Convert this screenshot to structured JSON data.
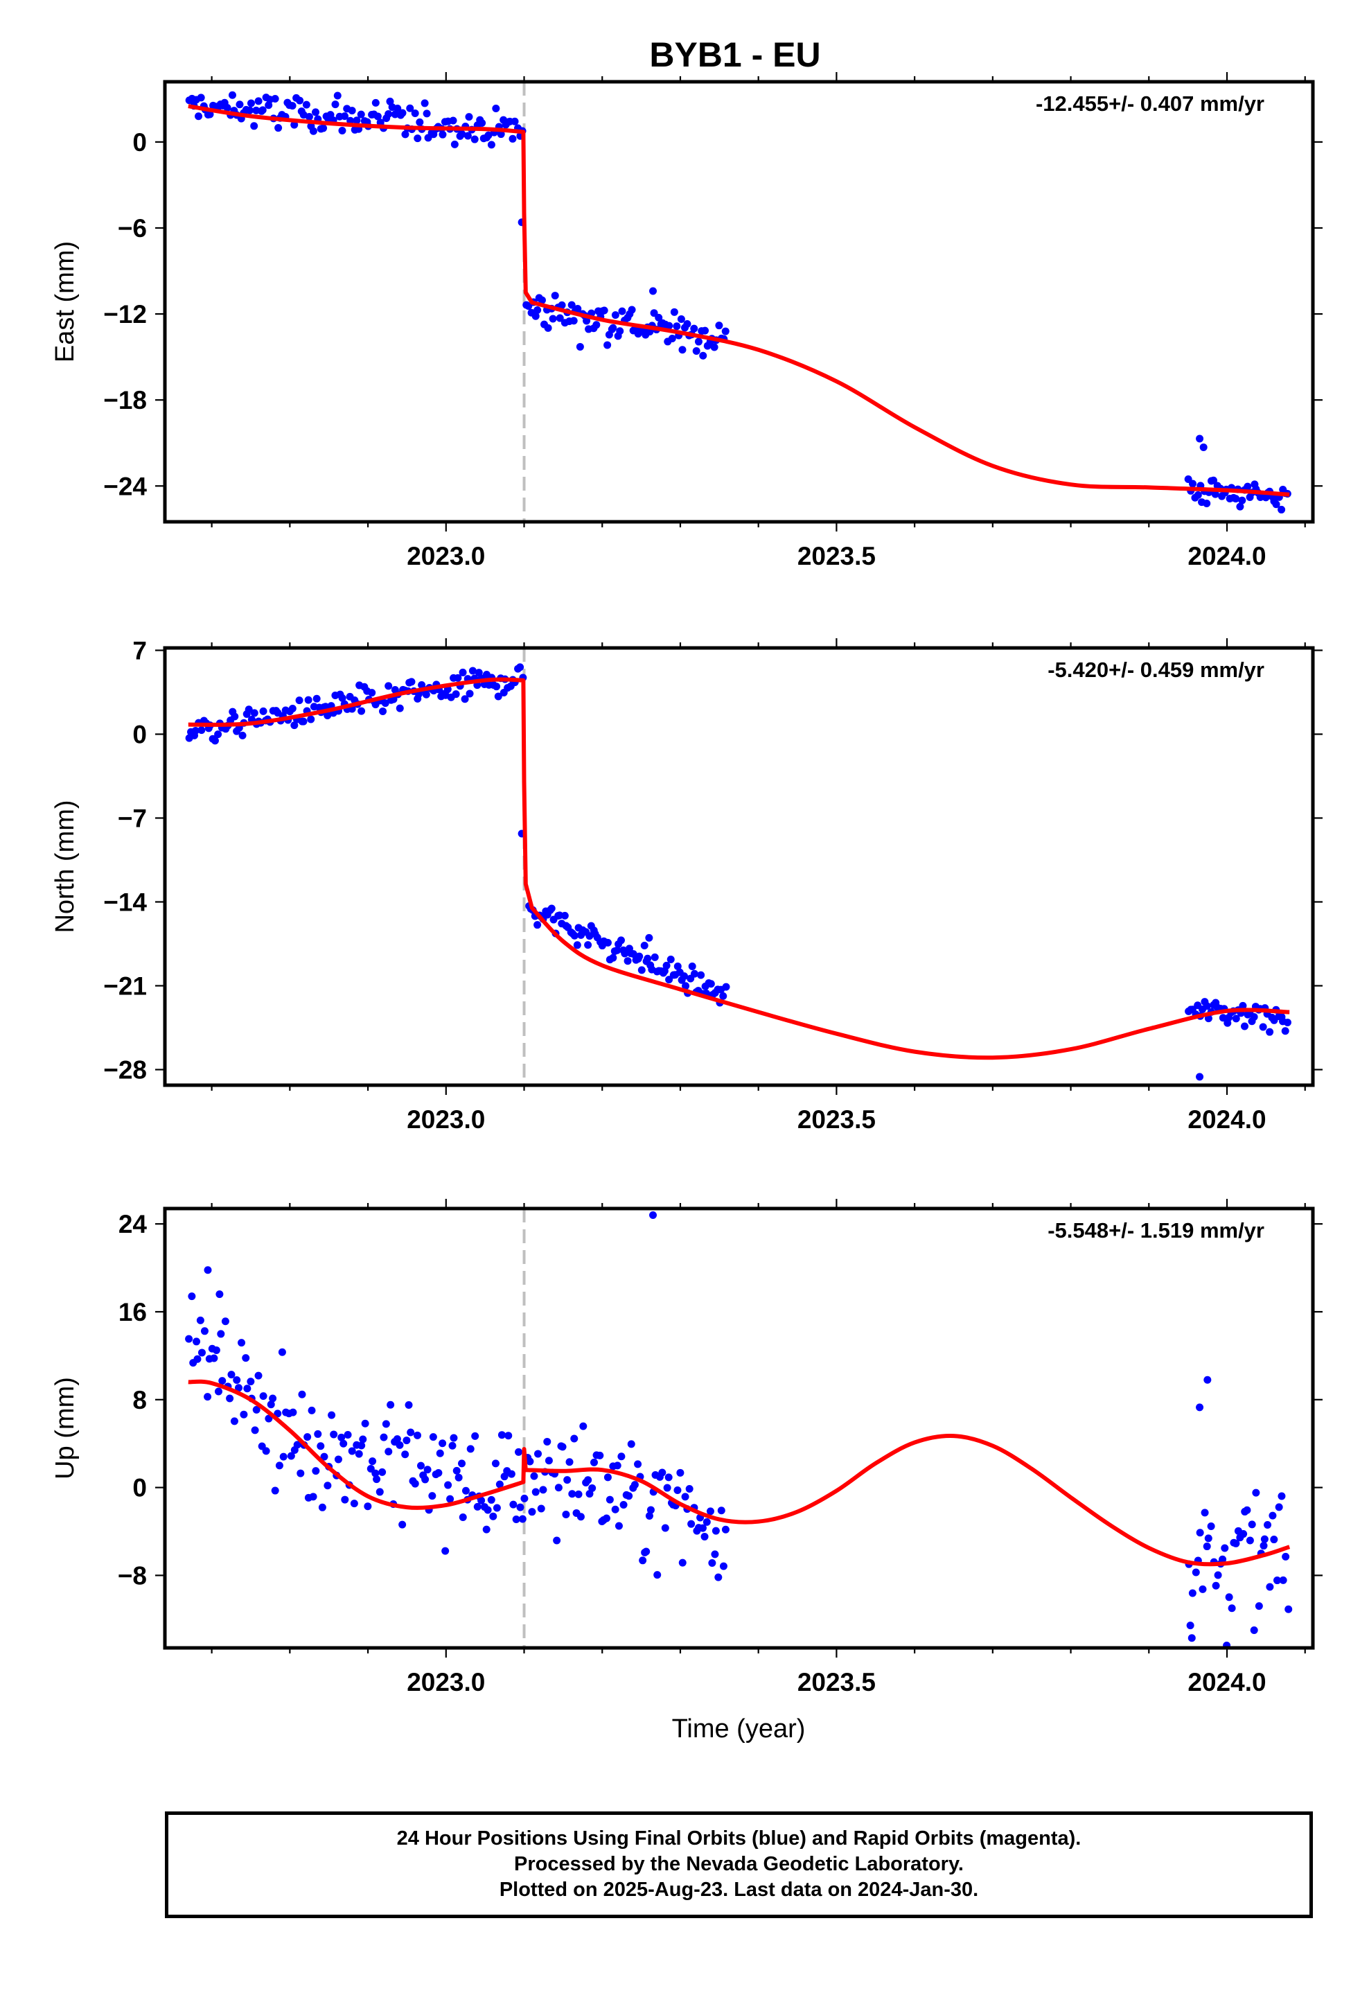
{
  "title": "BYB1 - EU",
  "xlabel": "Time (year)",
  "footer": {
    "line1": "24 Hour Positions Using Final Orbits (blue) and Rapid Orbits (magenta).",
    "line2": "Processed by the Nevada Geodetic Laboratory.",
    "line3": "Plotted on 2025-Aug-23. Last data on 2024-Jan-30."
  },
  "colors": {
    "points": "#0000ff",
    "fit": "#ff0000",
    "equipment_change": "#bfbfbf"
  },
  "chart_data": [
    {
      "type": "scatter",
      "component": "East",
      "ylabel": "East (mm)",
      "rate": "-12.455+/- 0.407 mm/yr",
      "xlim": [
        2022.64,
        2024.11
      ],
      "ylim": [
        -26.5,
        4.2
      ],
      "yticks": [
        0,
        -6,
        -12,
        -18,
        -24
      ],
      "ytick_labels": [
        "0",
        "−6",
        "−12",
        "−18",
        "−24"
      ],
      "xticks": [
        2023.0,
        2023.5,
        2024.0
      ],
      "xtick_labels": [
        "2023.0",
        "2023.5",
        "2024.0"
      ],
      "grid": false,
      "step_epoch": 2023.1,
      "segments": [
        {
          "x0": 2022.67,
          "x1": 2023.1,
          "y0": 2.5,
          "y1": 0.8,
          "sd": 0.9,
          "n": 140
        },
        {
          "x0": 2023.102,
          "x1": 2023.36,
          "y0": -11.5,
          "y1": -13.8,
          "sd": 1.0,
          "n": 90
        },
        {
          "x0": 2023.95,
          "x1": 2024.08,
          "y0": -24.2,
          "y1": -24.9,
          "sd": 0.7,
          "n": 45
        }
      ],
      "outliers": [
        {
          "x": 2023.097,
          "y": -5.6
        },
        {
          "x": 2023.965,
          "y": -20.7
        },
        {
          "x": 2023.97,
          "y": -21.3
        },
        {
          "x": 2023.265,
          "y": -10.4
        }
      ],
      "fit": [
        [
          2022.67,
          2.5
        ],
        [
          2022.75,
          1.8
        ],
        [
          2022.85,
          1.3
        ],
        [
          2022.95,
          1.0
        ],
        [
          2023.05,
          0.9
        ],
        [
          2023.099,
          0.7
        ],
        [
          2023.1,
          -5.0
        ],
        [
          2023.102,
          -10.5
        ],
        [
          2023.11,
          -11.2
        ],
        [
          2023.2,
          -12.4
        ],
        [
          2023.3,
          -13.3
        ],
        [
          2023.4,
          -14.5
        ],
        [
          2023.5,
          -16.7
        ],
        [
          2023.6,
          -19.9
        ],
        [
          2023.7,
          -22.6
        ],
        [
          2023.8,
          -23.9
        ],
        [
          2023.9,
          -24.1
        ],
        [
          2024.0,
          -24.3
        ],
        [
          2024.08,
          -24.6
        ]
      ]
    },
    {
      "type": "scatter",
      "component": "North",
      "ylabel": "North (mm)",
      "rate": "-5.420+/- 0.459 mm/yr",
      "xlim": [
        2022.64,
        2024.11
      ],
      "ylim": [
        -29.3,
        7.2
      ],
      "yticks": [
        7,
        0,
        -7,
        -14,
        -21,
        -28
      ],
      "ytick_labels": [
        "7",
        "0",
        "−7",
        "−14",
        "−21",
        "−28"
      ],
      "xticks": [
        2023.0,
        2023.5,
        2024.0
      ],
      "xtick_labels": [
        "2023.0",
        "2023.5",
        "2024.0"
      ],
      "grid": false,
      "step_epoch": 2023.1,
      "segments": [
        {
          "x0": 2022.67,
          "x1": 2023.1,
          "y0": 0.3,
          "y1": 4.8,
          "sd": 0.9,
          "n": 140
        },
        {
          "x0": 2023.105,
          "x1": 2023.36,
          "y0": -14.5,
          "y1": -22.0,
          "sd": 0.8,
          "n": 95
        },
        {
          "x0": 2023.95,
          "x1": 2024.08,
          "y0": -23.0,
          "y1": -23.5,
          "sd": 0.8,
          "n": 45
        }
      ],
      "outliers": [
        {
          "x": 2023.097,
          "y": -8.3
        },
        {
          "x": 2023.965,
          "y": -28.6
        },
        {
          "x": 2023.26,
          "y": -17.0
        }
      ],
      "fit": [
        [
          2022.67,
          0.8
        ],
        [
          2022.75,
          0.9
        ],
        [
          2022.85,
          2.0
        ],
        [
          2022.95,
          3.5
        ],
        [
          2023.05,
          4.5
        ],
        [
          2023.099,
          4.5
        ],
        [
          2023.1,
          -4.0
        ],
        [
          2023.102,
          -12.5
        ],
        [
          2023.11,
          -14.5
        ],
        [
          2023.15,
          -17.3
        ],
        [
          2023.2,
          -19.3
        ],
        [
          2023.3,
          -21.3
        ],
        [
          2023.4,
          -23.2
        ],
        [
          2023.5,
          -25.0
        ],
        [
          2023.6,
          -26.5
        ],
        [
          2023.7,
          -27.0
        ],
        [
          2023.8,
          -26.3
        ],
        [
          2023.9,
          -24.6
        ],
        [
          2024.0,
          -23.1
        ],
        [
          2024.08,
          -23.2
        ]
      ]
    },
    {
      "type": "scatter",
      "component": "Up",
      "ylabel": "Up (mm)",
      "rate": "-5.548+/- 1.519 mm/yr",
      "xlim": [
        2022.64,
        2024.11
      ],
      "ylim": [
        -14.6,
        25.4
      ],
      "yticks": [
        24,
        16,
        8,
        0,
        -8
      ],
      "ytick_labels": [
        "24",
        "16",
        "8",
        "0",
        "−8"
      ],
      "xticks": [
        2023.0,
        2023.5,
        2024.0
      ],
      "xtick_labels": [
        "2023.0",
        "2023.5",
        "2024.0"
      ],
      "grid": false,
      "step_epoch": 2023.1,
      "segments": [
        {
          "x0": 2022.67,
          "x1": 2022.78,
          "y0": 13.5,
          "y1": 7.0,
          "sd": 2.6,
          "n": 38
        },
        {
          "x0": 2022.78,
          "x1": 2023.1,
          "y0": 5.0,
          "y1": -1.0,
          "sd": 4.0,
          "n": 110
        },
        {
          "x0": 2023.1,
          "x1": 2023.36,
          "y0": 2.0,
          "y1": -3.5,
          "sd": 4.0,
          "n": 90
        },
        {
          "x0": 2023.95,
          "x1": 2024.08,
          "y0": -6.0,
          "y1": -6.5,
          "sd": 4.5,
          "n": 45
        }
      ],
      "outliers": [
        {
          "x": 2023.265,
          "y": 24.8
        },
        {
          "x": 2022.695,
          "y": 19.8
        },
        {
          "x": 2022.71,
          "y": 17.6
        },
        {
          "x": 2023.975,
          "y": 9.8
        },
        {
          "x": 2023.965,
          "y": 7.3
        },
        {
          "x": 2023.955,
          "y": -13.7
        }
      ],
      "fit": [
        [
          2022.67,
          9.6
        ],
        [
          2022.7,
          9.5
        ],
        [
          2022.75,
          8.0
        ],
        [
          2022.8,
          5.2
        ],
        [
          2022.85,
          1.8
        ],
        [
          2022.9,
          -0.8
        ],
        [
          2022.95,
          -1.8
        ],
        [
          2023.0,
          -1.6
        ],
        [
          2023.05,
          -0.6
        ],
        [
          2023.099,
          0.5
        ],
        [
          2023.1,
          3.5
        ],
        [
          2023.102,
          1.6
        ],
        [
          2023.15,
          1.5
        ],
        [
          2023.2,
          1.6
        ],
        [
          2023.25,
          0.6
        ],
        [
          2023.3,
          -1.5
        ],
        [
          2023.35,
          -2.9
        ],
        [
          2023.4,
          -3.1
        ],
        [
          2023.45,
          -2.2
        ],
        [
          2023.5,
          -0.3
        ],
        [
          2023.55,
          2.2
        ],
        [
          2023.6,
          4.1
        ],
        [
          2023.65,
          4.7
        ],
        [
          2023.7,
          3.8
        ],
        [
          2023.75,
          1.7
        ],
        [
          2023.8,
          -0.9
        ],
        [
          2023.85,
          -3.4
        ],
        [
          2023.9,
          -5.5
        ],
        [
          2023.95,
          -6.8
        ],
        [
          2024.0,
          -6.9
        ],
        [
          2024.05,
          -6.1
        ],
        [
          2024.08,
          -5.4
        ]
      ]
    }
  ]
}
